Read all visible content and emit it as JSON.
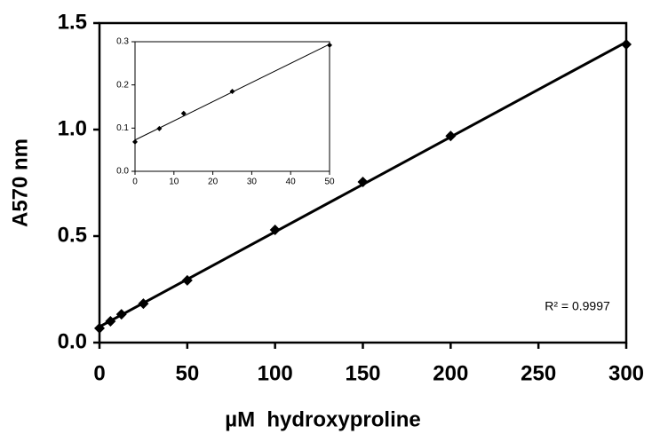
{
  "chart_data": [
    {
      "type": "scatter",
      "x_label": "µM  hydroxyproline",
      "y_label": "A570 nm",
      "x": [
        0,
        6.25,
        12.5,
        25,
        50,
        100,
        150,
        200,
        300
      ],
      "values": [
        0.067,
        0.1,
        0.133,
        0.183,
        0.292,
        0.529,
        0.754,
        0.97,
        1.4
      ],
      "color": "#000000",
      "trendline": true,
      "xlim": [
        0,
        300
      ],
      "xticks": [
        0,
        50,
        100,
        150,
        200,
        250,
        300
      ],
      "ylim": [
        0,
        1.5
      ],
      "yticks": [
        {
          "value": 0,
          "label": "0.0"
        },
        0.5,
        {
          "value": 1,
          "label": "1.0"
        },
        1.5
      ],
      "annotation": "R² = 0.9997"
    },
    {
      "type": "scatter",
      "x": [
        0,
        6.25,
        12.5,
        25,
        50
      ],
      "values": [
        0.068,
        0.099,
        0.134,
        0.185,
        0.292
      ],
      "color": "#000000",
      "trendline": true,
      "xlim": [
        0,
        50
      ],
      "xticks": [
        0,
        10,
        20,
        30,
        40,
        50
      ],
      "ylim": [
        0,
        0.3
      ],
      "yticks": [
        {
          "value": 0,
          "label": "0.0"
        },
        0.1,
        0.2,
        0.3
      ]
    }
  ]
}
